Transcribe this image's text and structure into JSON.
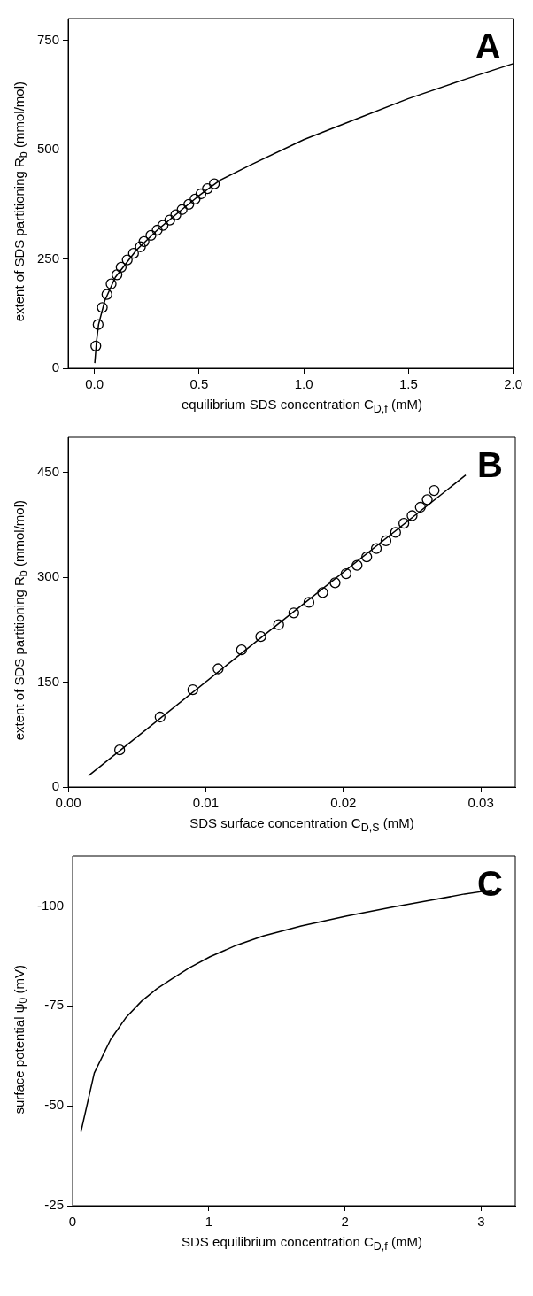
{
  "chart_data": [
    {
      "type": "scatter",
      "xlabel": "equilibrium SDS concentration C$_{D,f}$ (mM)",
      "ylabel": "extent of SDS partitioning R$_{b}$  (mmol/mol)",
      "annotations": [
        "A"
      ],
      "xlim": [
        -0.125,
        2.0
      ],
      "xticks": [
        {
          "value": 0,
          "label": "0.0"
        },
        {
          "value": 0.5,
          "label": "0.5"
        },
        {
          "value": 1,
          "label": "1.0"
        },
        {
          "value": 1.5,
          "label": "1.5"
        },
        {
          "value": 2,
          "label": "2.0"
        }
      ],
      "ylim": [
        0,
        800
      ],
      "yticks": [
        0,
        250,
        500,
        750
      ],
      "grid": false,
      "legend": false,
      "series": [
        {
          "marker": "circle",
          "color": "#000000",
          "x": [
            0.007,
            0.018,
            0.038,
            0.06,
            0.08,
            0.108,
            0.128,
            0.157,
            0.187,
            0.22,
            0.237,
            0.27,
            0.3,
            0.328,
            0.36,
            0.389,
            0.419,
            0.451,
            0.481,
            0.509,
            0.54,
            0.573
          ],
          "values": [
            51,
            100,
            139,
            169,
            193,
            214,
            231,
            248,
            263,
            278,
            290,
            304,
            316,
            327,
            339,
            351,
            363,
            375,
            387,
            399,
            411,
            422
          ]
        },
        {
          "type": "line",
          "line_style": "solid",
          "color": "#000000",
          "x": [
            0.002,
            0.01,
            0.02,
            0.05,
            0.1,
            0.2,
            0.3,
            0.4,
            0.5,
            0.6,
            0.75,
            1.0,
            1.25,
            1.5,
            1.75,
            2.0
          ],
          "values": [
            12,
            60,
            100,
            155,
            208,
            270,
            316,
            356,
            395,
            430,
            466,
            523,
            570,
            617,
            658,
            697
          ]
        }
      ]
    },
    {
      "type": "scatter",
      "xlabel": "SDS surface concentration C$_{D,S}$  (mM)",
      "ylabel": "extent of SDS partitioning R$_{b}$  (mmol/mol)",
      "annotations": [
        "B"
      ],
      "xlim": [
        0,
        0.0325
      ],
      "xticks": [
        {
          "value": 0,
          "label": "0.00"
        },
        {
          "value": 0.01,
          "label": "0.01"
        },
        {
          "value": 0.02,
          "label": "0.02"
        },
        {
          "value": 0.03,
          "label": "0.03"
        }
      ],
      "ylim": [
        0,
        500
      ],
      "yticks": [
        0,
        150,
        300,
        450
      ],
      "grid": false,
      "legend": false,
      "series": [
        {
          "marker": "circle",
          "color": "#000000",
          "x": [
            0.00374,
            0.00668,
            0.00906,
            0.0109,
            0.0126,
            0.014,
            0.0153,
            0.0164,
            0.0175,
            0.0185,
            0.0194,
            0.0202,
            0.021,
            0.0217,
            0.0224,
            0.0231,
            0.0238,
            0.0244,
            0.025,
            0.0256,
            0.0261,
            0.0266
          ],
          "values": [
            53,
            100,
            139,
            169,
            196,
            215,
            232,
            249,
            264,
            278,
            292,
            305,
            317,
            329,
            341,
            352,
            364,
            377,
            388,
            400,
            411,
            424
          ]
        },
        {
          "type": "line",
          "line_style": "solid",
          "color": "#000000",
          "x": [
            0.00147,
            0.015,
            0.0289
          ],
          "values": [
            16,
            229,
            446
          ]
        }
      ]
    },
    {
      "type": "line",
      "xlabel": "SDS equilibrium concentration C$_{D,f}$  (mM)",
      "ylabel": "surface potential ψ$_{0}$  (mV)",
      "annotations": [
        "C"
      ],
      "xlim": [
        0,
        3.25
      ],
      "xticks": [
        0,
        1,
        2,
        3
      ],
      "ylim": [
        -25,
        -112.5
      ],
      "yticks": [
        -100,
        -75,
        -50,
        -25
      ],
      "grid": false,
      "legend": false,
      "series": [
        {
          "line_style": "solid",
          "color": "#000000",
          "x": [
            0.061,
            0.159,
            0.279,
            0.39,
            0.507,
            0.619,
            0.73,
            0.856,
            1.009,
            1.204,
            1.4,
            1.678,
            2.013,
            2.347,
            2.626,
            2.877,
            3.08
          ],
          "values": [
            -43.5,
            -58.2,
            -66.6,
            -72,
            -76.2,
            -79.3,
            -81.8,
            -84.5,
            -87.3,
            -90.2,
            -92.5,
            -95,
            -97.5,
            -99.7,
            -101.4,
            -103,
            -104
          ]
        }
      ]
    }
  ]
}
